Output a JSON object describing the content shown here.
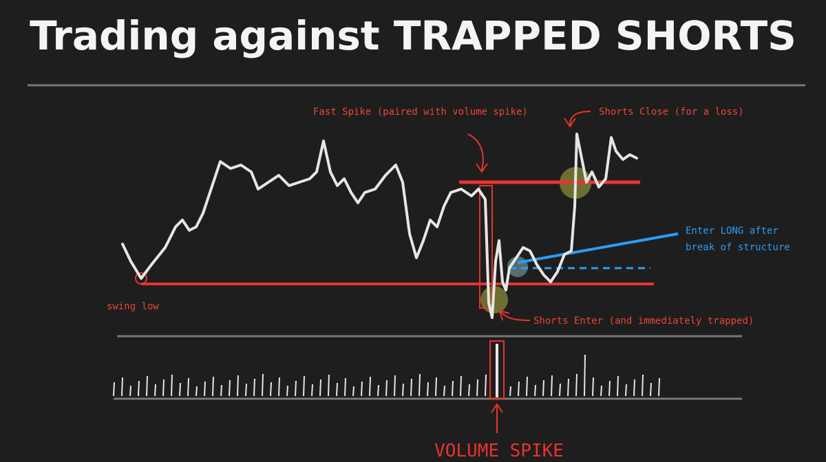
{
  "title": "Trading against TRAPPED SHORTS",
  "annotations": {
    "fast_spike": "Fast Spike (paired with volume spike)",
    "shorts_close": "Shorts Close (for a loss)",
    "enter_long": [
      "Enter LONG after",
      "break of structure"
    ],
    "swing_low": "swing low",
    "shorts_enter": "Shorts Enter (and immediately trapped)",
    "volume_spike": "VOLUME SPIKE"
  }
}
